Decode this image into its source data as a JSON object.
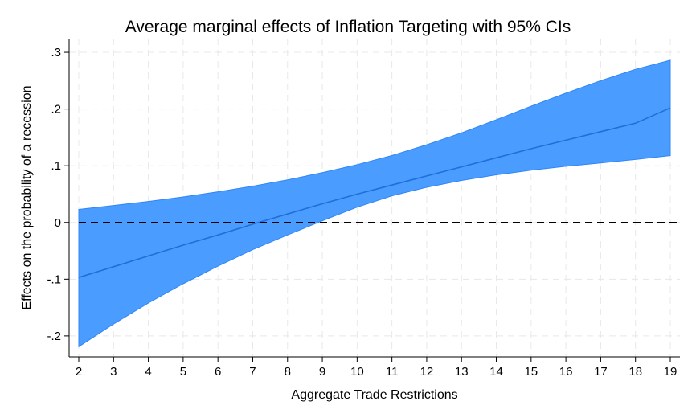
{
  "chart_data": {
    "type": "area",
    "title": "Average marginal effects of Inflation Targeting with 95% CIs",
    "xlabel": "Aggregate Trade Restrictions",
    "ylabel": "Effects on the probability of a recession",
    "xlim": [
      2,
      19
    ],
    "ylim": [
      -0.22,
      0.31
    ],
    "x_ticks": [
      2,
      3,
      4,
      5,
      6,
      7,
      8,
      9,
      10,
      11,
      12,
      13,
      14,
      15,
      16,
      17,
      18,
      19
    ],
    "x_tick_labels": [
      "2",
      "3",
      "4",
      "5",
      "6",
      "7",
      "8",
      "9",
      "10",
      "11",
      "12",
      "13",
      "14",
      "15",
      "16",
      "17",
      "18",
      "19"
    ],
    "y_ticks": [
      -0.2,
      -0.1,
      0,
      0.1,
      0.2,
      0.3
    ],
    "y_tick_labels": [
      "-.2",
      "-.1",
      "0",
      ".1",
      ".2",
      ".3"
    ],
    "grid": true,
    "reference_line": {
      "y": 0,
      "style": "dashed",
      "color": "#000000"
    },
    "series": [
      {
        "x": [
          2,
          3,
          4,
          5,
          6,
          7,
          8,
          9,
          10,
          11,
          12,
          13,
          14,
          15,
          16,
          17,
          18,
          19
        ],
        "estimate": [
          -0.097,
          -0.078,
          -0.059,
          -0.04,
          -0.022,
          -0.003,
          0.015,
          0.033,
          0.05,
          0.066,
          0.082,
          0.098,
          0.114,
          0.13,
          0.145,
          0.16,
          0.175,
          0.202
        ],
        "lower": [
          -0.219,
          -0.179,
          -0.142,
          -0.108,
          -0.077,
          -0.048,
          -0.022,
          0.003,
          0.027,
          0.047,
          0.062,
          0.074,
          0.084,
          0.092,
          0.099,
          0.105,
          0.111,
          0.118
        ],
        "upper": [
          0.023,
          0.03,
          0.037,
          0.045,
          0.054,
          0.064,
          0.075,
          0.088,
          0.102,
          0.118,
          0.137,
          0.158,
          0.181,
          0.205,
          0.228,
          0.25,
          0.27,
          0.286
        ]
      }
    ],
    "colors": {
      "band": "#4a9dff",
      "band_edge": "#2f86f5",
      "line": "#1f6fd8",
      "grid": "#e8e8e8",
      "axis": "#000000"
    }
  }
}
